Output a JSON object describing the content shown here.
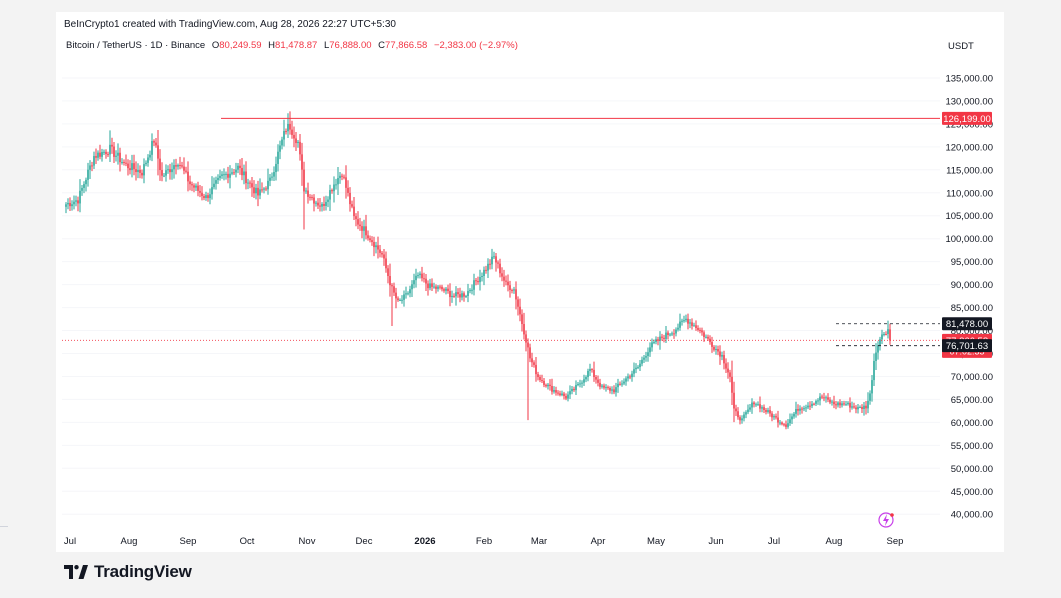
{
  "header": {
    "credit": "BeInCrypto1 created with TradingView.com, Aug 28, 2026 22:27 UTC+5:30",
    "symbol": "Bitcoin / TetherUS · 1D · Binance",
    "open_label": "O",
    "open_value": "80,249.59",
    "high_label": "H",
    "high_value": "81,478.87",
    "low_label": "L",
    "low_value": "76,888.00",
    "close_label": "C",
    "close_value": "77,866.58",
    "change": "−2,383.00 (−2.97%)",
    "currency": "USDT"
  },
  "brand": {
    "name": "TradingView"
  },
  "colors": {
    "up": "#26a69a",
    "down": "#f23645",
    "text": "#131722",
    "grid": "#f0f3fa"
  },
  "chart_data": {
    "type": "candlestick",
    "title": "Bitcoin / TetherUS · 1D · Binance",
    "ylim": [
      37000,
      140000
    ],
    "y_ticks": [
      {
        "value": 40000,
        "label": "40,000.00"
      },
      {
        "value": 45000,
        "label": "45,000.00"
      },
      {
        "value": 50000,
        "label": "50,000.00"
      },
      {
        "value": 55000,
        "label": "55,000.00"
      },
      {
        "value": 60000,
        "label": "60,000.00"
      },
      {
        "value": 65000,
        "label": "65,000.00"
      },
      {
        "value": 70000,
        "label": "70,000.00"
      },
      {
        "value": 75000,
        "label": "75,000.00"
      },
      {
        "value": 80000,
        "label": "80,000.00"
      },
      {
        "value": 85000,
        "label": "85,000.00"
      },
      {
        "value": 90000,
        "label": "90,000.00"
      },
      {
        "value": 95000,
        "label": "95,000.00"
      },
      {
        "value": 100000,
        "label": "100,000.00"
      },
      {
        "value": 105000,
        "label": "105,000.00"
      },
      {
        "value": 110000,
        "label": "110,000.00"
      },
      {
        "value": 115000,
        "label": "115,000.00"
      },
      {
        "value": 120000,
        "label": "120,000.00"
      },
      {
        "value": 125000,
        "label": "125,000.00"
      },
      {
        "value": 130000,
        "label": "130,000.00"
      },
      {
        "value": 135000,
        "label": "135,000.00"
      }
    ],
    "x_ticks": [
      {
        "label": "Jul",
        "bold": false
      },
      {
        "label": "Aug",
        "bold": false
      },
      {
        "label": "Sep",
        "bold": false
      },
      {
        "label": "Oct",
        "bold": false
      },
      {
        "label": "Nov",
        "bold": false
      },
      {
        "label": "Dec",
        "bold": false
      },
      {
        "label": "2026",
        "bold": true
      },
      {
        "label": "Feb",
        "bold": false
      },
      {
        "label": "Mar",
        "bold": false
      },
      {
        "label": "Apr",
        "bold": false
      },
      {
        "label": "May",
        "bold": false
      },
      {
        "label": "Jun",
        "bold": false
      },
      {
        "label": "Jul",
        "bold": false
      },
      {
        "label": "Aug",
        "bold": false
      },
      {
        "label": "Sep",
        "bold": false
      }
    ],
    "trend_anchors": [
      [
        0,
        107500
      ],
      [
        6,
        108500
      ],
      [
        14,
        118000
      ],
      [
        22,
        119500
      ],
      [
        30,
        116000
      ],
      [
        38,
        114500
      ],
      [
        44,
        121500
      ],
      [
        48,
        113500
      ],
      [
        56,
        117000
      ],
      [
        62,
        112000
      ],
      [
        70,
        109000
      ],
      [
        78,
        113500
      ],
      [
        86,
        115500
      ],
      [
        96,
        109500
      ],
      [
        102,
        112500
      ],
      [
        106,
        118500
      ],
      [
        110,
        124000
      ],
      [
        112,
        124500
      ],
      [
        116,
        121000
      ],
      [
        119,
        111000
      ],
      [
        124,
        108500
      ],
      [
        128,
        107000
      ],
      [
        134,
        112000
      ],
      [
        138,
        114500
      ],
      [
        144,
        104500
      ],
      [
        150,
        101500
      ],
      [
        158,
        96500
      ],
      [
        163,
        89000
      ],
      [
        166,
        86000
      ],
      [
        170,
        87500
      ],
      [
        176,
        92000
      ],
      [
        182,
        89500
      ],
      [
        188,
        89000
      ],
      [
        194,
        87500
      ],
      [
        200,
        88000
      ],
      [
        210,
        93500
      ],
      [
        214,
        96000
      ],
      [
        220,
        90000
      ],
      [
        224,
        89000
      ],
      [
        230,
        78000
      ],
      [
        232,
        74000
      ],
      [
        236,
        70000
      ],
      [
        242,
        67500
      ],
      [
        250,
        65500
      ],
      [
        256,
        68000
      ],
      [
        262,
        71500
      ],
      [
        268,
        67500
      ],
      [
        274,
        67000
      ],
      [
        280,
        69500
      ],
      [
        286,
        72000
      ],
      [
        292,
        76500
      ],
      [
        298,
        78500
      ],
      [
        304,
        80000
      ],
      [
        310,
        82500
      ],
      [
        316,
        80500
      ],
      [
        322,
        77500
      ],
      [
        328,
        74500
      ],
      [
        332,
        70000
      ],
      [
        334,
        62500
      ],
      [
        338,
        60500
      ],
      [
        344,
        64500
      ],
      [
        350,
        62500
      ],
      [
        356,
        60500
      ],
      [
        360,
        59500
      ],
      [
        366,
        63000
      ],
      [
        372,
        64000
      ],
      [
        378,
        65500
      ],
      [
        384,
        64000
      ],
      [
        390,
        64000
      ],
      [
        396,
        63000
      ],
      [
        400,
        63500
      ],
      [
        402,
        66000
      ],
      [
        404,
        73500
      ],
      [
        406,
        77500
      ],
      [
        409,
        79500
      ],
      [
        411,
        80300
      ],
      [
        412,
        77900
      ]
    ],
    "last_candle": {
      "open": 80249.59,
      "high": 81478.87,
      "low": 76888.0,
      "close": 77866.58
    },
    "horizontal_line": {
      "value": 126199.0,
      "label": "126,199.00",
      "color": "#f23645"
    },
    "dashed_levels": [
      {
        "value": 81478.0,
        "label": "81,478.00"
      },
      {
        "value": 76701.63,
        "label": "76,701.63"
      }
    ],
    "current_price": {
      "value": 77866.58,
      "label": "77,866.58",
      "countdown": "07:02:35"
    }
  }
}
